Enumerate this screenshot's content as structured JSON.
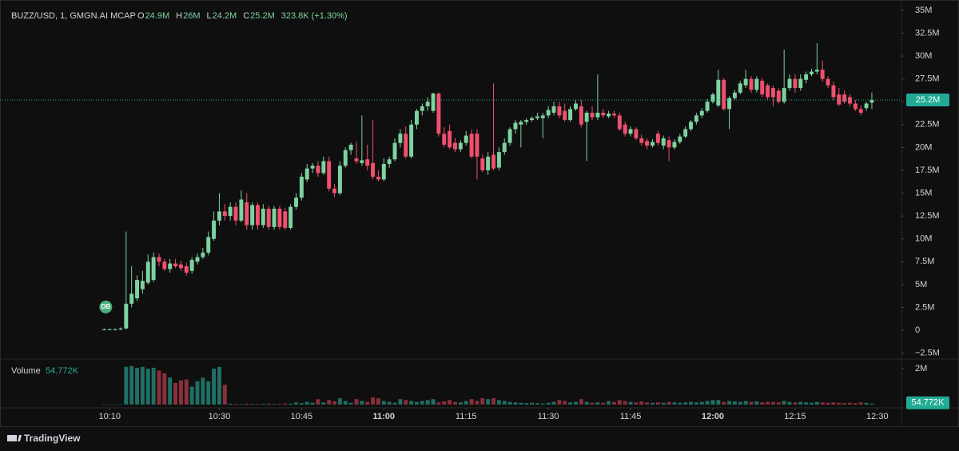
{
  "chart_data": {
    "type": "candlestick",
    "symbol": "BUZZ/USD, 1, GMGN.AI MCAP",
    "ohlc_legend": [
      {
        "key": "O",
        "value": "24.9M"
      },
      {
        "key": "H",
        "value": "26M"
      },
      {
        "key": "L",
        "value": "24.2M"
      },
      {
        "key": "C",
        "value": "25.2M"
      }
    ],
    "change": "323.8K (+1.30%)",
    "marker": "DB",
    "last_price_label": "25.2M",
    "volume_title": "Volume",
    "volume_value": "54.772K",
    "brand": "TradingView",
    "up_color": "#7dd3a0",
    "down_color": "#f0506e",
    "volume_up_color": "#1f6f64",
    "volume_down_color": "#8a2f3c",
    "xlim": [
      590,
      754.4
    ],
    "xticks": [
      {
        "value": 610,
        "label": "10:10"
      },
      {
        "value": 630,
        "label": "10:30"
      },
      {
        "value": 645,
        "label": "10:45"
      },
      {
        "value": 660,
        "label": "11:00"
      },
      {
        "value": 675,
        "label": "11:15"
      },
      {
        "value": 690,
        "label": "11:30"
      },
      {
        "value": 705,
        "label": "11:45"
      },
      {
        "value": 720,
        "label": "12:00"
      },
      {
        "value": 735,
        "label": "12:15"
      },
      {
        "value": 750,
        "label": "12:30"
      }
    ],
    "ylim": [
      -3.06,
      36.13
    ],
    "yticks": [
      {
        "value": 35,
        "label": "35M"
      },
      {
        "value": 32.5,
        "label": "32.5M"
      },
      {
        "value": 30,
        "label": "30M"
      },
      {
        "value": 27.5,
        "label": "27.5M"
      },
      {
        "value": 25,
        "label": "25M"
      },
      {
        "value": 22.5,
        "label": "22.5M"
      },
      {
        "value": 20,
        "label": "20M"
      },
      {
        "value": 17.5,
        "label": "17.5M"
      },
      {
        "value": 15,
        "label": "15M"
      },
      {
        "value": 12.5,
        "label": "12.5M"
      },
      {
        "value": 10,
        "label": "10M"
      },
      {
        "value": 7.5,
        "label": "7.5M"
      },
      {
        "value": 5,
        "label": "5M"
      },
      {
        "value": 2.5,
        "label": "2.5M"
      },
      0,
      {
        "value": -2.5,
        "label": "−2.5M"
      }
    ],
    "volume_ylim": [
      -0.27,
      2.49
    ],
    "volume_yticks": [
      {
        "value": 2,
        "label": "2M"
      }
    ],
    "x": [
      609,
      610,
      611,
      612,
      613,
      614,
      615,
      616,
      617,
      618,
      619,
      620,
      621,
      622,
      623,
      624,
      625,
      626,
      627,
      628,
      629,
      630,
      631,
      632,
      633,
      634,
      635,
      636,
      637,
      638,
      639,
      640,
      641,
      642,
      643,
      644,
      645,
      646,
      647,
      648,
      649,
      650,
      651,
      652,
      653,
      654,
      655,
      656,
      657,
      658,
      659,
      660,
      661,
      662,
      663,
      664,
      665,
      666,
      667,
      668,
      669,
      670,
      671,
      672,
      673,
      674,
      675,
      676,
      677,
      678,
      679,
      680,
      681,
      682,
      683,
      684,
      685,
      686,
      687,
      688,
      689,
      690,
      691,
      692,
      693,
      694,
      695,
      696,
      697,
      698,
      699,
      700,
      701,
      702,
      703,
      704,
      705,
      706,
      707,
      708,
      709,
      710,
      711,
      712,
      713,
      714,
      715,
      716,
      717,
      718,
      719,
      720,
      721,
      722,
      723,
      724,
      725,
      726,
      727,
      728,
      729,
      730,
      731,
      732,
      733,
      734,
      735,
      736,
      737,
      738,
      739,
      740,
      741,
      742,
      743,
      744,
      745,
      746,
      747,
      748,
      749
    ],
    "ohlc": [
      [
        0.1,
        0.2,
        0,
        0.1
      ],
      [
        0.1,
        0.2,
        0,
        0.1
      ],
      [
        0.1,
        0.2,
        0,
        0.1
      ],
      [
        0.1,
        0.3,
        0,
        0.2
      ],
      [
        0.2,
        10.8,
        0.1,
        2.9
      ],
      [
        2.9,
        7,
        2.5,
        4
      ],
      [
        3.5,
        6,
        3.2,
        5.5
      ],
      [
        4.5,
        6.5,
        4,
        5.4
      ],
      [
        5.2,
        8.3,
        5,
        7.5
      ],
      [
        5.5,
        8.5,
        5.3,
        8
      ],
      [
        8,
        8.4,
        7,
        7.5
      ],
      [
        7.5,
        7.8,
        6.5,
        6.7
      ],
      [
        6.7,
        7.8,
        6.3,
        7.3
      ],
      [
        7.3,
        7.8,
        6.8,
        7
      ],
      [
        7.2,
        7.6,
        6.5,
        6.8
      ],
      [
        7,
        7.4,
        6,
        6.3
      ],
      [
        6.5,
        8,
        6.2,
        7.7
      ],
      [
        7.5,
        8.4,
        7.2,
        8
      ],
      [
        8,
        9,
        7.8,
        8.5
      ],
      [
        8.5,
        10.8,
        8.2,
        10.2
      ],
      [
        10,
        13,
        9.8,
        12
      ],
      [
        12,
        15,
        11.5,
        13
      ],
      [
        13,
        13.8,
        12,
        12.5
      ],
      [
        12.5,
        14,
        12,
        13.5
      ],
      [
        13.5,
        14,
        11.5,
        12
      ],
      [
        12,
        15.3,
        11.8,
        14.3
      ],
      [
        14,
        15,
        11,
        11.5
      ],
      [
        11.5,
        14,
        11,
        13.7
      ],
      [
        13.7,
        14,
        11,
        11.5
      ],
      [
        11.5,
        13.8,
        11.2,
        13.3
      ],
      [
        13.3,
        13.6,
        11,
        11.3
      ],
      [
        11.3,
        13.6,
        11,
        13.3
      ],
      [
        13.3,
        13.6,
        11,
        11.3
      ],
      [
        13,
        13.4,
        11,
        11.2
      ],
      [
        11.2,
        13.8,
        11,
        13.5
      ],
      [
        13.5,
        15,
        13.2,
        14.5
      ],
      [
        14.5,
        17.2,
        14.2,
        16.8
      ],
      [
        16.5,
        18.2,
        16.2,
        17.7
      ],
      [
        17.7,
        18.3,
        17.2,
        18
      ],
      [
        18,
        18.5,
        16.8,
        17.2
      ],
      [
        17.2,
        19,
        17,
        18.5
      ],
      [
        18.5,
        19,
        15.2,
        15.5
      ],
      [
        15.5,
        16,
        14.6,
        15
      ],
      [
        15,
        18.5,
        14.8,
        18
      ],
      [
        18,
        20,
        17.8,
        19.7
      ],
      [
        19.7,
        20.5,
        19.2,
        20.3
      ],
      [
        18.8,
        20.6,
        18.2,
        18.5
      ],
      [
        18.3,
        23.5,
        18,
        18.6
      ],
      [
        18.7,
        20.3,
        17.5,
        18
      ],
      [
        18.3,
        23,
        16.5,
        16.8
      ],
      [
        16.8,
        17.5,
        16.3,
        16.5
      ],
      [
        16.5,
        18.8,
        16.3,
        18.2
      ],
      [
        18.2,
        19,
        17.8,
        18.7
      ],
      [
        18.7,
        21,
        18.5,
        20.5
      ],
      [
        20.5,
        22,
        20,
        21.5
      ],
      [
        21.5,
        22.3,
        18.8,
        19
      ],
      [
        19,
        23,
        18.8,
        22.5
      ],
      [
        22.5,
        24.2,
        22,
        24
      ],
      [
        24,
        24.8,
        23.5,
        24.5
      ],
      [
        24.5,
        25.5,
        24,
        25
      ],
      [
        24,
        26,
        23.8,
        25.9
      ],
      [
        25.9,
        26,
        21.2,
        21.5
      ],
      [
        21.5,
        22.2,
        20,
        20.3
      ],
      [
        21.8,
        22.5,
        19.8,
        20
      ],
      [
        20.5,
        21,
        19.5,
        19.8
      ],
      [
        19.8,
        20.8,
        19.5,
        20.5
      ],
      [
        20.5,
        21.8,
        20.2,
        21.3
      ],
      [
        21.5,
        22,
        18.8,
        19
      ],
      [
        21.5,
        22,
        16.5,
        19
      ],
      [
        18.8,
        19.2,
        17.3,
        17.5
      ],
      [
        17.5,
        19.5,
        17,
        19
      ],
      [
        19.2,
        27,
        17.5,
        17.7
      ],
      [
        17.8,
        20,
        17.5,
        19.5
      ],
      [
        19.5,
        21,
        19.2,
        20.5
      ],
      [
        20.5,
        22.2,
        20.2,
        22
      ],
      [
        22,
        23,
        21.5,
        22.7
      ],
      [
        22.5,
        23,
        20,
        22.8
      ],
      [
        22.8,
        23.2,
        22.5,
        23
      ],
      [
        23,
        23.4,
        22.8,
        23.2
      ],
      [
        23.2,
        23.8,
        23,
        23.4
      ],
      [
        23.2,
        23.8,
        21,
        23.5
      ],
      [
        23.5,
        24.5,
        23.2,
        24.1
      ],
      [
        23.8,
        25,
        23.5,
        24.5
      ],
      [
        24.5,
        25,
        23.2,
        23.5
      ],
      [
        24,
        24.8,
        22.8,
        23
      ],
      [
        23,
        24.5,
        22.8,
        24.2
      ],
      [
        24.2,
        25.2,
        24,
        24.8
      ],
      [
        24.5,
        25.2,
        22.2,
        22.5
      ],
      [
        22.8,
        24,
        18.5,
        23.8
      ],
      [
        23.8,
        24.5,
        23,
        23.3
      ],
      [
        23.3,
        28,
        23,
        23.8
      ],
      [
        23.8,
        24.2,
        23.2,
        23.5
      ],
      [
        23.4,
        24,
        23.2,
        23.7
      ],
      [
        23.7,
        24,
        23.2,
        23.5
      ],
      [
        23.5,
        23.8,
        21.8,
        22
      ],
      [
        22.5,
        22.8,
        21.2,
        21.5
      ],
      [
        21.5,
        22.3,
        21.2,
        22
      ],
      [
        22,
        22.2,
        20.8,
        21
      ],
      [
        21,
        21.4,
        20.2,
        20.5
      ],
      [
        20.7,
        21,
        19.8,
        20.2
      ],
      [
        20.2,
        20.9,
        20,
        20.6
      ],
      [
        21.5,
        21.8,
        20.2,
        20.5
      ],
      [
        20.2,
        21.3,
        19.8,
        21
      ],
      [
        20.8,
        21.2,
        18.5,
        20
      ],
      [
        20,
        20.9,
        19.8,
        20.6
      ],
      [
        20.6,
        21.5,
        20.4,
        21.2
      ],
      [
        21.2,
        22.3,
        21,
        22
      ],
      [
        22,
        23,
        21.8,
        22.8
      ],
      [
        22.8,
        23.8,
        22.5,
        23.5
      ],
      [
        23.5,
        24.3,
        23.2,
        24
      ],
      [
        24,
        25.3,
        23.8,
        25
      ],
      [
        25,
        26,
        24.8,
        25.8
      ],
      [
        24.6,
        28.5,
        24.4,
        27.4
      ],
      [
        27.4,
        27.6,
        24,
        24.2
      ],
      [
        24.2,
        25.6,
        22,
        25.4
      ],
      [
        25.4,
        26.3,
        25.2,
        26
      ],
      [
        26,
        27.3,
        25.8,
        27
      ],
      [
        26.8,
        28.5,
        26.5,
        27.5
      ],
      [
        27.5,
        27.8,
        26,
        26.3
      ],
      [
        26.3,
        27.8,
        26,
        27.5
      ],
      [
        27.3,
        27.6,
        25.5,
        25.8
      ],
      [
        26.8,
        27,
        25.2,
        25.5
      ],
      [
        26.5,
        26.8,
        24.5,
        25.5
      ],
      [
        26.2,
        26.5,
        24.8,
        25
      ],
      [
        25,
        30.7,
        24.8,
        26.5
      ],
      [
        26.5,
        28,
        26.2,
        27.5
      ],
      [
        27.5,
        28,
        26,
        26.5
      ],
      [
        26.5,
        28,
        26.2,
        27.5
      ],
      [
        27.4,
        28.3,
        27,
        28
      ],
      [
        28,
        28.6,
        27.8,
        28.3
      ],
      [
        28.3,
        31.4,
        28,
        28.5
      ],
      [
        28.5,
        29.5,
        27.2,
        27.5
      ],
      [
        27.5,
        27.8,
        26.5,
        26.8
      ],
      [
        26.8,
        27.2,
        25.2,
        25.5
      ],
      [
        25.8,
        26.5,
        24.5,
        24.7
      ],
      [
        25.8,
        26.2,
        24.8,
        25
      ],
      [
        25.5,
        25.8,
        24.5,
        24.8
      ],
      [
        24.8,
        25.2,
        24,
        24.2
      ],
      [
        24.2,
        24.6,
        23.5,
        23.8
      ],
      [
        24.3,
        25,
        24,
        24.8
      ],
      [
        24.9,
        26,
        24.2,
        25.2
      ]
    ],
    "volume": [
      0.01,
      0.01,
      0.01,
      0.02,
      2.1,
      2.15,
      2.05,
      2.1,
      2.0,
      2.05,
      1.9,
      1.75,
      1.5,
      1.2,
      1.35,
      1.4,
      1.0,
      1.3,
      1.5,
      1.3,
      2.0,
      2.1,
      1.1,
      0.05,
      0.04,
      0.03,
      0.05,
      0.04,
      0.03,
      0.04,
      0.05,
      0.03,
      0.04,
      0.06,
      0.05,
      0.12,
      0.08,
      0.15,
      0.1,
      0.3,
      0.12,
      0.25,
      0.18,
      0.35,
      0.2,
      0.1,
      0.3,
      0.2,
      0.15,
      0.4,
      0.35,
      0.2,
      0.15,
      0.1,
      0.3,
      0.25,
      0.2,
      0.15,
      0.2,
      0.25,
      0.3,
      0.12,
      0.18,
      0.25,
      0.15,
      0.12,
      0.2,
      0.3,
      0.2,
      0.35,
      0.3,
      0.35,
      0.25,
      0.2,
      0.15,
      0.12,
      0.1,
      0.08,
      0.1,
      0.08,
      0.06,
      0.1,
      0.15,
      0.25,
      0.2,
      0.12,
      0.15,
      0.3,
      0.15,
      0.1,
      0.12,
      0.1,
      0.2,
      0.15,
      0.25,
      0.2,
      0.15,
      0.12,
      0.18,
      0.12,
      0.1,
      0.12,
      0.1,
      0.15,
      0.12,
      0.1,
      0.12,
      0.15,
      0.12,
      0.15,
      0.2,
      0.25,
      0.25,
      0.15,
      0.2,
      0.18,
      0.15,
      0.2,
      0.15,
      0.18,
      0.12,
      0.15,
      0.15,
      0.12,
      0.2,
      0.15,
      0.12,
      0.15,
      0.12,
      0.1,
      0.15,
      0.12,
      0.1,
      0.12,
      0.1,
      0.08,
      0.1,
      0.08,
      0.12,
      0.1,
      0.054772
    ]
  }
}
